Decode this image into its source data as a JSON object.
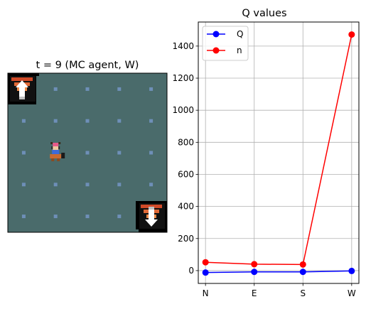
{
  "left_panel": {
    "title": "t = 9 (MC agent, W)",
    "grid": {
      "cols": 5,
      "rows": 5,
      "floor_color": "#4a6b6b",
      "dot_color": "#6e8fb8"
    },
    "agent_cell": [
      1,
      2
    ],
    "stairs_cells": [
      [
        0,
        0
      ],
      [
        4,
        4
      ]
    ]
  },
  "chart_data": {
    "type": "line",
    "title": "Q values",
    "xlabel": "",
    "ylabel": "",
    "categories": [
      "N",
      "E",
      "S",
      "W"
    ],
    "ylim": [
      -80,
      1550
    ],
    "yticks": [
      0,
      200,
      400,
      600,
      800,
      1000,
      1200,
      1400
    ],
    "grid": true,
    "legend_position": "upper-left",
    "series": [
      {
        "name": "Q",
        "color": "#0000ff",
        "values": [
          -12,
          -8,
          -8,
          -2
        ]
      },
      {
        "name": "n",
        "color": "#ff0000",
        "values": [
          52,
          40,
          38,
          1472
        ]
      }
    ]
  }
}
